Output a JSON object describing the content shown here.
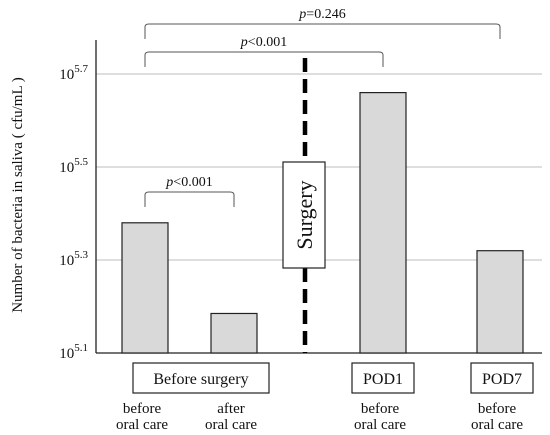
{
  "chart_data": {
    "type": "bar",
    "ylabel": "Number of bacteria in saliva ( cfu/mL )",
    "y_scale": "log10",
    "y_exponent_range": [
      5.1,
      5.7
    ],
    "y_ticks": [
      {
        "base": "10",
        "exp": "5.7",
        "value": 5.7
      },
      {
        "base": "10",
        "exp": "5.5",
        "value": 5.5
      },
      {
        "base": "10",
        "exp": "5.3",
        "value": 5.3
      },
      {
        "base": "10",
        "exp": "5.1",
        "value": 5.1
      }
    ],
    "grid": "horizontal",
    "bars": [
      {
        "label_line1": "before",
        "label_line2": "oral care",
        "exponent": 5.38
      },
      {
        "label_line1": "after",
        "label_line2": "oral care",
        "exponent": 5.185
      },
      {
        "label_line1": "before",
        "label_line2": "oral care",
        "exponent": 5.66
      },
      {
        "label_line1": "before",
        "label_line2": "oral care",
        "exponent": 5.32
      }
    ],
    "groups": [
      {
        "label": "Before surgery",
        "bars": [
          0,
          1
        ]
      },
      {
        "label": "POD1",
        "bars": [
          2
        ]
      },
      {
        "label": "POD7",
        "bars": [
          3
        ]
      }
    ],
    "divider_label": "Surgery",
    "comparisons": [
      {
        "from": 0,
        "to": 3,
        "p_symbol": "p",
        "p_rest": "=0.246"
      },
      {
        "from": 0,
        "to": 2,
        "p_symbol": "p",
        "p_rest": "<0.001"
      },
      {
        "from": 0,
        "to": 1,
        "p_symbol": "p",
        "p_rest": "<0.001"
      }
    ]
  }
}
